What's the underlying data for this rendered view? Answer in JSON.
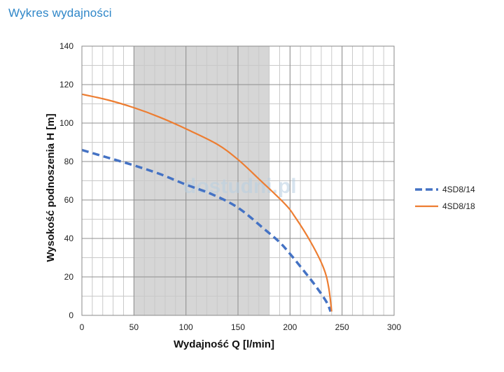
{
  "page": {
    "title": "Wykres wydajności"
  },
  "watermark": "dostudni.pl",
  "chart_data": {
    "type": "line",
    "title": "Wykres wydajności",
    "xlabel": "Wydajność Q [l/min]",
    "ylabel": "Wysokość podnoszenia H [m]",
    "xlim": [
      0,
      300
    ],
    "ylim": [
      0,
      140
    ],
    "xticks": [
      0,
      50,
      100,
      150,
      200,
      250,
      300
    ],
    "yticks": [
      0,
      20,
      40,
      60,
      80,
      100,
      120,
      140
    ],
    "x_minor_step": 10,
    "y_minor_step": 10,
    "grid": true,
    "shaded_range": {
      "x_from": 50,
      "x_to": 180,
      "color": "#d6d6d6"
    },
    "legend_position": "right",
    "series": [
      {
        "name": "4SD8/14",
        "color": "#4472c4",
        "style": "dashed",
        "points": [
          [
            0,
            86
          ],
          [
            25,
            82
          ],
          [
            50,
            78
          ],
          [
            75,
            73.5
          ],
          [
            100,
            68
          ],
          [
            125,
            63
          ],
          [
            150,
            56
          ],
          [
            175,
            45
          ],
          [
            190,
            38
          ],
          [
            200,
            32
          ],
          [
            215,
            22
          ],
          [
            225,
            15
          ],
          [
            235,
            7
          ],
          [
            239,
            2
          ]
        ]
      },
      {
        "name": "4SD8/18",
        "color": "#ed7d31",
        "style": "solid",
        "points": [
          [
            0,
            115
          ],
          [
            25,
            112
          ],
          [
            50,
            108
          ],
          [
            75,
            103
          ],
          [
            100,
            97
          ],
          [
            130,
            89
          ],
          [
            150,
            81
          ],
          [
            170,
            71
          ],
          [
            195,
            58
          ],
          [
            205,
            51
          ],
          [
            220,
            38
          ],
          [
            232,
            25
          ],
          [
            237,
            15
          ],
          [
            240,
            2
          ]
        ]
      }
    ]
  }
}
